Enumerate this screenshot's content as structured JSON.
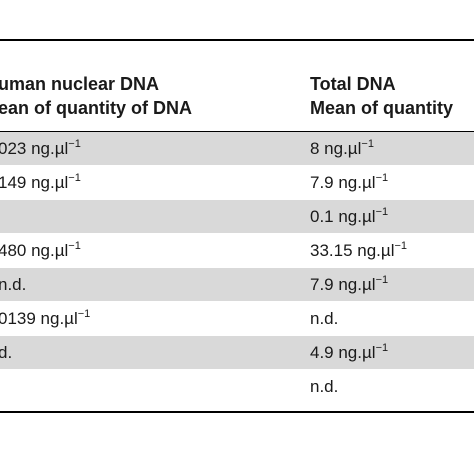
{
  "header": {
    "col_a_line1": "uman nuclear DNA",
    "col_a_line2": "ean of quantity of DNA",
    "col_b_line1": "Total DNA",
    "col_b_line2": "Mean of quantity"
  },
  "rows": [
    {
      "a": "023 ng.µl",
      "a_exp": "−1",
      "b": "8 ng.µl",
      "b_exp": "−1",
      "shaded": true
    },
    {
      "a": "149 ng.µl",
      "a_exp": "−1",
      "b": "7.9 ng.µl",
      "b_exp": "−1",
      "shaded": false
    },
    {
      "a": "",
      "a_exp": "",
      "b": "0.1 ng.µl",
      "b_exp": "−1",
      "shaded": true
    },
    {
      "a": "480 ng.µl",
      "a_exp": "−1",
      "b": "33.15 ng.µl",
      "b_exp": "−1",
      "shaded": false
    },
    {
      "a": "n.d.",
      "a_exp": "",
      "b": "7.9 ng.µl",
      "b_exp": "−1",
      "shaded": true
    },
    {
      "a": "0139 ng.µl",
      "a_exp": "−1",
      "b": "n.d.",
      "b_exp": "",
      "shaded": false
    },
    {
      "a": "d.",
      "a_exp": "",
      "b": "4.9 ng.µl",
      "b_exp": "−1",
      "shaded": true
    },
    {
      "a": "",
      "a_exp": "",
      "b": "n.d.",
      "b_exp": "",
      "shaded": false
    }
  ]
}
